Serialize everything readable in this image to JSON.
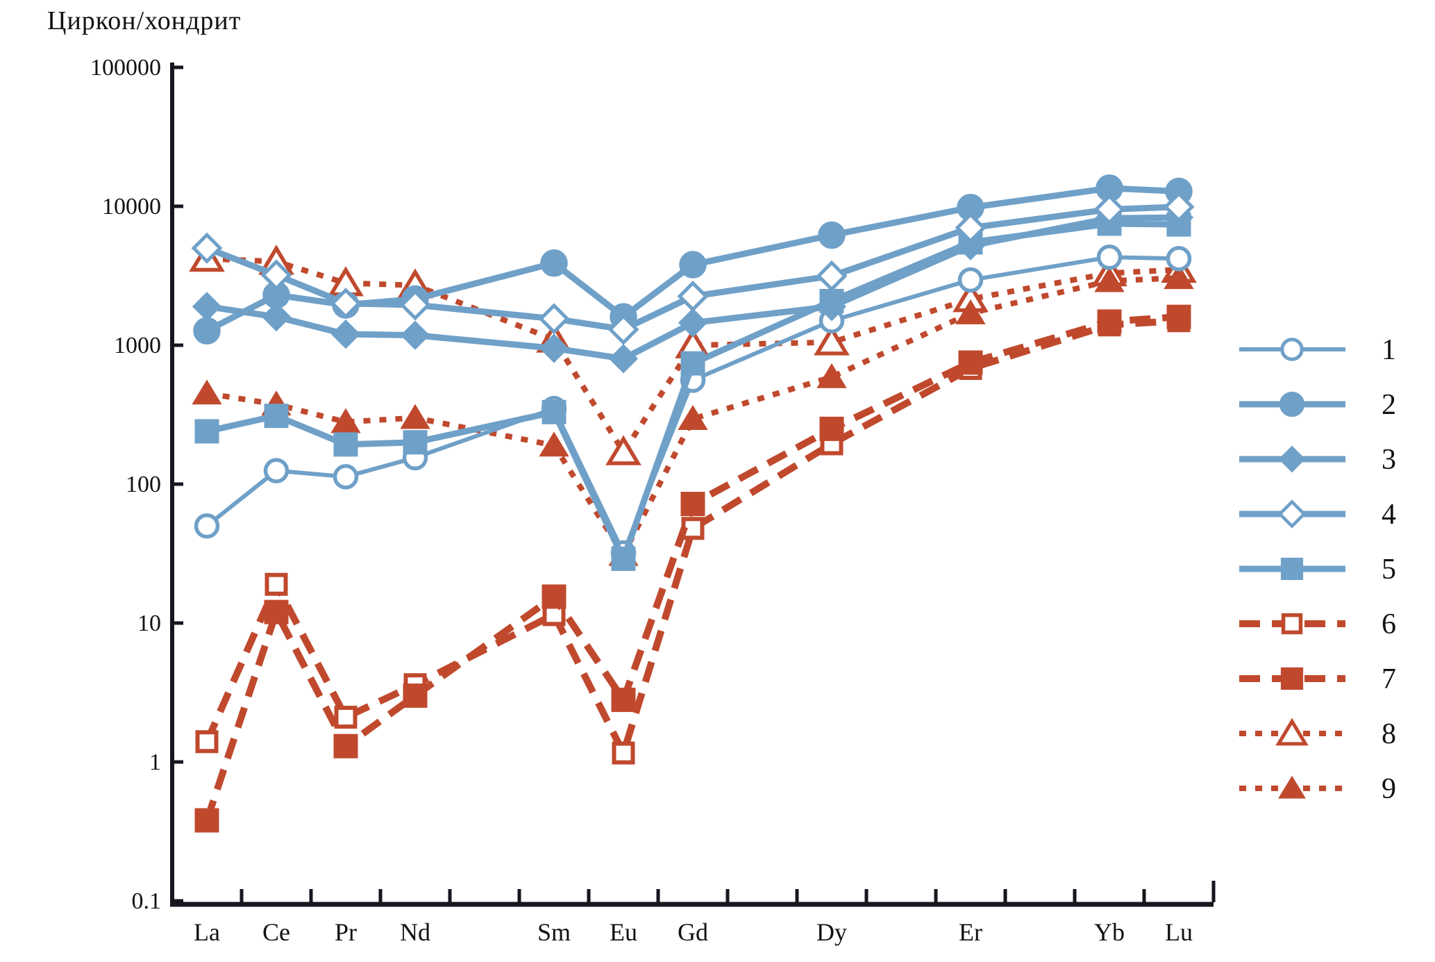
{
  "title": "Циркон/хондрит",
  "colors": {
    "blue": "#6FA0C8",
    "red": "#C0492D",
    "axis": "#16161f",
    "marker_open_fill": "#ffffff"
  },
  "chart_data": {
    "type": "line",
    "y_scale": "log",
    "ylim": [
      0.1,
      100000
    ],
    "y_ticks": [
      "100000",
      "10000",
      "1000",
      "100",
      "10",
      "1",
      "0.1"
    ],
    "ylabel": "Циркон/хондрит",
    "xlabel": "",
    "grid": "off",
    "legend_position": "right",
    "x_categories": [
      "La",
      "Ce",
      "Pr",
      "Nd",
      "Sm",
      "Eu",
      "Gd",
      "Dy",
      "Er",
      "Yb",
      "Lu"
    ],
    "x_atomic_numbers": [
      57,
      58,
      59,
      60,
      62,
      63,
      64,
      66,
      68,
      70,
      71
    ],
    "x_axis_z_range": [
      56.5,
      71.5
    ],
    "series": [
      {
        "label": "1",
        "color": "blue",
        "line": "solid",
        "marker": "circle",
        "fill": "open",
        "line_width": 6,
        "values": [
          50,
          125,
          113,
          155,
          350,
          32,
          560,
          1500,
          2950,
          4300,
          4200
        ]
      },
      {
        "label": "2",
        "color": "blue",
        "line": "solid",
        "marker": "circle",
        "fill": "filled",
        "line_width": 9,
        "values": [
          1270,
          2300,
          1950,
          2150,
          3900,
          1600,
          3800,
          6200,
          9800,
          13500,
          12800
        ]
      },
      {
        "label": "3",
        "color": "blue",
        "line": "solid",
        "marker": "diamond",
        "fill": "filled",
        "line_width": 9,
        "values": [
          1900,
          1600,
          1200,
          1180,
          950,
          800,
          1450,
          1900,
          5200,
          8200,
          8300
        ]
      },
      {
        "label": "4",
        "color": "blue",
        "line": "solid",
        "marker": "diamond",
        "fill": "open",
        "line_width": 9,
        "values": [
          5000,
          3200,
          2000,
          1950,
          1550,
          1300,
          2250,
          3150,
          7000,
          9500,
          9900
        ]
      },
      {
        "label": "5",
        "color": "blue",
        "line": "solid",
        "marker": "square",
        "fill": "filled",
        "line_width": 9,
        "values": [
          240,
          310,
          193,
          200,
          330,
          29,
          740,
          2080,
          5500,
          7500,
          7400
        ]
      },
      {
        "label": "6",
        "color": "red",
        "line": "dashed",
        "marker": "square",
        "fill": "open",
        "line_width": 10,
        "values": [
          1.4,
          19,
          2.1,
          3.6,
          11.5,
          1.16,
          48,
          195,
          680,
          1400,
          1500
        ]
      },
      {
        "label": "7",
        "color": "red",
        "line": "dashed",
        "marker": "square",
        "fill": "filled",
        "line_width": 10,
        "values": [
          0.38,
          12,
          1.3,
          3.0,
          15.5,
          2.8,
          72,
          250,
          750,
          1480,
          1600
        ]
      },
      {
        "label": "8",
        "color": "red",
        "line": "dotted",
        "marker": "triangle",
        "fill": "open",
        "line_width": 8,
        "values": [
          4200,
          4000,
          2800,
          2700,
          1100,
          170,
          1000,
          1050,
          2150,
          3300,
          3500
        ]
      },
      {
        "label": "9",
        "color": "red",
        "line": "dotted",
        "marker": "triangle",
        "fill": "filled",
        "line_width": 8,
        "values": [
          450,
          375,
          280,
          300,
          190,
          31,
          295,
          590,
          1700,
          2900,
          3050
        ]
      }
    ]
  },
  "legend": {
    "labels": [
      "1",
      "2",
      "3",
      "4",
      "5",
      "6",
      "7",
      "8",
      "9"
    ]
  }
}
